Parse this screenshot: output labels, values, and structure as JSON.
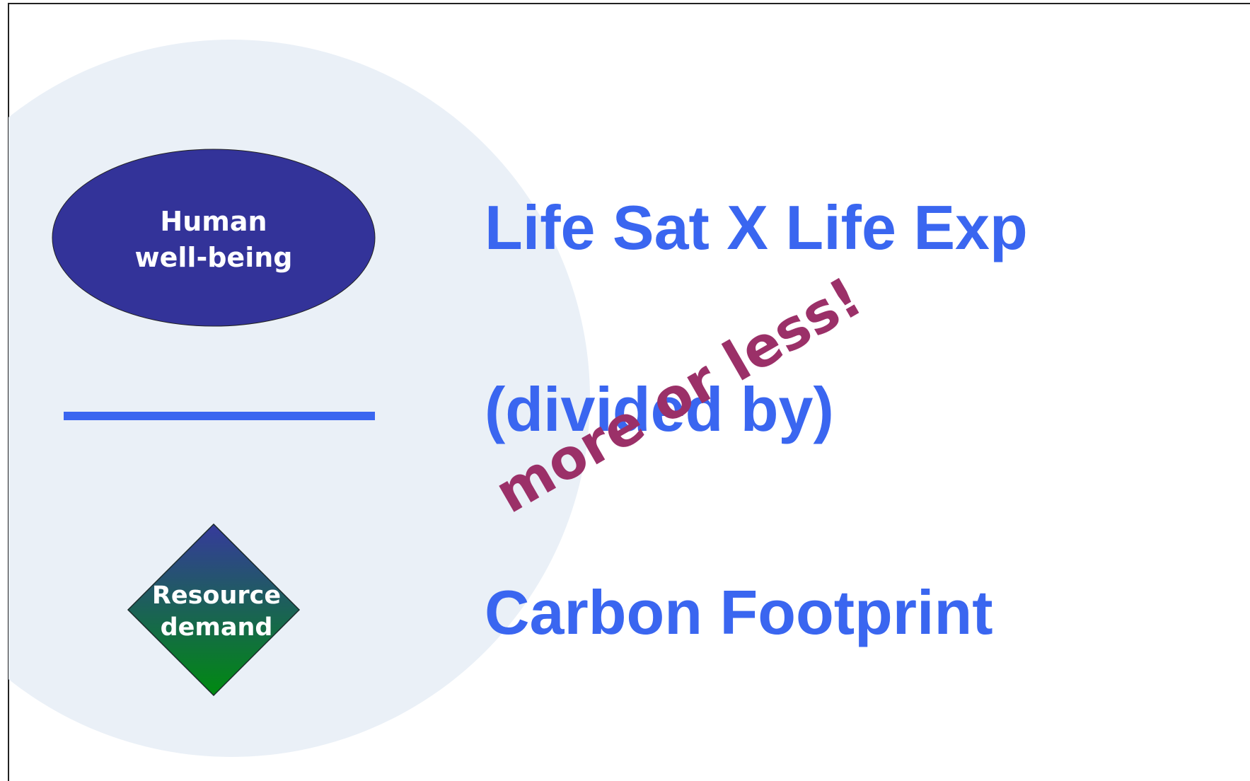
{
  "diagram": {
    "left": {
      "top_node": {
        "lines": [
          "Human",
          "well-being"
        ]
      },
      "bottom_node": {
        "lines": [
          "Resource",
          "demand"
        ]
      }
    },
    "right": {
      "numerator": "Life Sat X Life Exp",
      "operator": "(divided by)",
      "denominator": "Carbon Footprint",
      "annotation": "more or less!"
    }
  }
}
